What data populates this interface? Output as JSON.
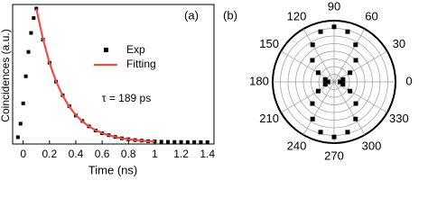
{
  "chart_data": [
    {
      "type": "line",
      "panel_label": "(a)",
      "xlabel": "Time (ns)",
      "ylabel": "Coincidences (a.u.)",
      "annotation": "τ = 189 ps",
      "xlim": [
        -0.08,
        1.45
      ],
      "ylim": [
        0,
        1.03
      ],
      "xticks": [
        0,
        0.2,
        0.4,
        0.6,
        0.8,
        1.0,
        1.2,
        1.4
      ],
      "series": [
        {
          "name": "Exp",
          "color": "#000000",
          "marker": "square",
          "x": [
            -0.04,
            -0.02,
            0,
            0.02,
            0.04,
            0.06,
            0.08,
            0.1,
            0.15,
            0.2,
            0.25,
            0.3,
            0.35,
            0.4,
            0.45,
            0.5,
            0.55,
            0.6,
            0.65,
            0.7,
            0.75,
            0.8,
            0.85,
            0.9,
            0.95,
            1.0,
            1.05,
            1.1,
            1.15,
            1.2,
            1.25,
            1.3,
            1.35,
            1.4
          ],
          "values": [
            0.05,
            0.15,
            0.3,
            0.5,
            0.68,
            0.82,
            0.93,
            1.0,
            0.77,
            0.6,
            0.46,
            0.36,
            0.28,
            0.21,
            0.17,
            0.13,
            0.1,
            0.08,
            0.065,
            0.052,
            0.042,
            0.035,
            0.029,
            0.025,
            0.021,
            0.019,
            0.017,
            0.016,
            0.015,
            0.015,
            0.014,
            0.014,
            0.014,
            0.014
          ]
        },
        {
          "name": "Fitting",
          "color": "#e8504a",
          "marker": "line",
          "x": [
            0.1,
            0.15,
            0.2,
            0.25,
            0.3,
            0.35,
            0.4,
            0.45,
            0.5,
            0.55,
            0.6,
            0.65,
            0.7,
            0.75,
            0.8,
            0.85,
            0.9,
            0.95,
            1.0
          ],
          "values": [
            1.0,
            0.777,
            0.599,
            0.462,
            0.357,
            0.276,
            0.214,
            0.167,
            0.13,
            0.102,
            0.081,
            0.064,
            0.052,
            0.042,
            0.035,
            0.029,
            0.025,
            0.021,
            0.019
          ]
        }
      ]
    },
    {
      "type": "polar",
      "panel_label": "(b)",
      "rlim": [
        0,
        1
      ],
      "color": "#000000",
      "thetaticks": [
        0,
        30,
        60,
        90,
        120,
        150,
        180,
        210,
        240,
        270,
        300,
        330
      ],
      "theta": [
        0,
        15,
        30,
        45,
        60,
        75,
        90,
        105,
        120,
        135,
        150,
        165,
        180,
        195,
        210,
        225,
        240,
        255,
        270,
        285,
        300,
        315,
        330,
        345
      ],
      "values": [
        0.1,
        0.15,
        0.3,
        0.5,
        0.7,
        0.85,
        0.9,
        0.85,
        0.7,
        0.5,
        0.3,
        0.15,
        0.1,
        0.15,
        0.3,
        0.5,
        0.7,
        0.85,
        0.9,
        0.85,
        0.7,
        0.5,
        0.3,
        0.15
      ]
    }
  ]
}
